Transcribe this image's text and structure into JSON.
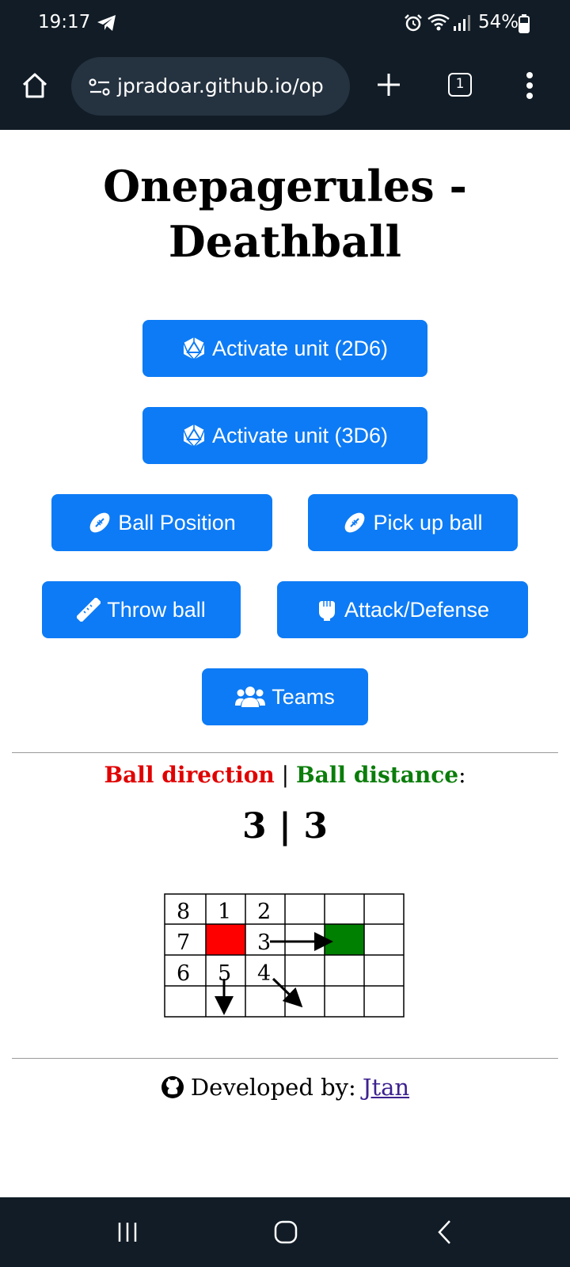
{
  "status_bar": {
    "time": "19:17",
    "battery": "54%",
    "icons": [
      "telegram-icon",
      "alarm-icon",
      "wifi-icon",
      "signal-icon",
      "battery-icon"
    ]
  },
  "browser": {
    "url": "jpradoar.github.io/op",
    "tab_count": "1"
  },
  "page": {
    "title": "Onepagerules - Deathball",
    "buttons": {
      "activate_2d6": "Activate unit (2D6)",
      "activate_3d6": "Activate unit (3D6)",
      "ball_position": "Ball Position",
      "pick_up_ball": "Pick up ball",
      "throw_ball": "Throw ball",
      "attack_defense": "Attack/Defense",
      "teams": "Teams"
    },
    "ball": {
      "direction_label": "Ball direction",
      "separator": "|",
      "distance_label": "Ball distance",
      "colon": ":",
      "direction_value": "3",
      "distance_value": "3"
    },
    "diagram": {
      "grid_numbers": [
        "8",
        "1",
        "2",
        "7",
        "3",
        "6",
        "5",
        "4"
      ],
      "colors": {
        "center": "#ff0000",
        "target": "#008000"
      }
    },
    "footer": {
      "prefix": "Developed by:",
      "link_text": "Jtan"
    }
  },
  "colors": {
    "button_bg": "#0d7bf5",
    "chrome_bg": "#111c26",
    "direction_text": "#e00000",
    "distance_text": "#0a7d0a",
    "link": "#3d2290"
  }
}
